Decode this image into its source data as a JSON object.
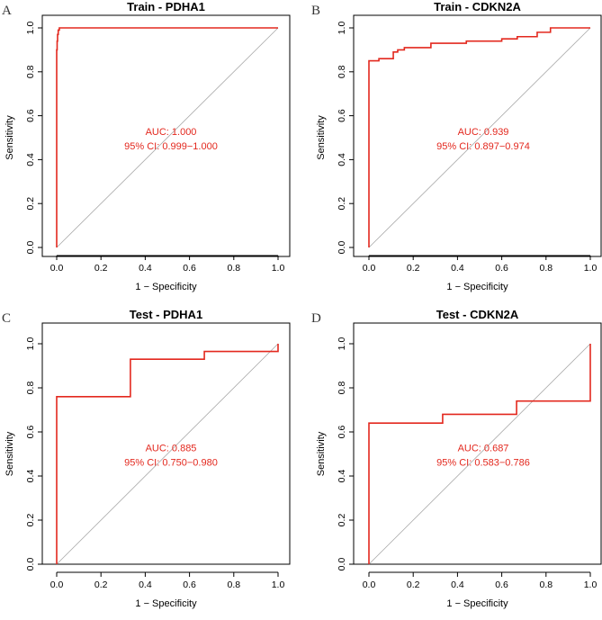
{
  "figure": {
    "panel_count": 4
  },
  "style": {
    "roc_color": "#e3281e",
    "diagonal_color": "#a8a8a8"
  },
  "chart_data": [
    {
      "type": "line",
      "panel_letter": "A",
      "title": "Train - PDHA1",
      "xlabel": "1 − Specificity",
      "ylabel": "Sensitivity",
      "xlim": [
        0,
        1
      ],
      "ylim": [
        0,
        1
      ],
      "xticks": [
        0,
        0.2,
        0.4,
        0.6,
        0.8,
        1
      ],
      "xtick_labels": [
        "0.0",
        "0.2",
        "0.4",
        "0.6",
        "0.8",
        "1.0"
      ],
      "yticks": [
        0,
        0.2,
        0.4,
        0.6,
        0.8,
        1
      ],
      "ytick_labels": [
        "0.0",
        "0.2",
        "0.4",
        "0.6",
        "0.8",
        "1.0"
      ],
      "diagonal": true,
      "auc_text": "AUC: 1.000",
      "ci_text": "95% CI: 0.999−1.000",
      "series": [
        {
          "name": "ROC",
          "x": [
            0,
            0,
            0.002,
            0.002,
            0.004,
            0.004,
            0.007,
            0.007,
            0.012,
            0.012,
            1
          ],
          "y": [
            0,
            0.9,
            0.9,
            0.94,
            0.94,
            0.97,
            0.97,
            0.99,
            0.99,
            1,
            1
          ]
        }
      ]
    },
    {
      "type": "line",
      "panel_letter": "B",
      "title": "Train - CDKN2A",
      "xlabel": "1 − Specificity",
      "ylabel": "Sensitivity",
      "xlim": [
        0,
        1
      ],
      "ylim": [
        0,
        1
      ],
      "xticks": [
        0,
        0.2,
        0.4,
        0.6,
        0.8,
        1
      ],
      "xtick_labels": [
        "0.0",
        "0.2",
        "0.4",
        "0.6",
        "0.8",
        "1.0"
      ],
      "yticks": [
        0,
        0.2,
        0.4,
        0.6,
        0.8,
        1
      ],
      "ytick_labels": [
        "0.0",
        "0.2",
        "0.4",
        "0.6",
        "0.8",
        "1.0"
      ],
      "diagonal": true,
      "auc_text": "AUC: 0.939",
      "ci_text": "95% CI: 0.897−0.974",
      "series": [
        {
          "name": "ROC",
          "x": [
            0,
            0,
            0.045,
            0.045,
            0.11,
            0.11,
            0.13,
            0.13,
            0.16,
            0.16,
            0.28,
            0.28,
            0.44,
            0.44,
            0.6,
            0.6,
            0.67,
            0.67,
            0.76,
            0.76,
            0.82,
            0.82,
            1
          ],
          "y": [
            0,
            0.85,
            0.85,
            0.86,
            0.86,
            0.89,
            0.89,
            0.9,
            0.9,
            0.91,
            0.91,
            0.93,
            0.93,
            0.94,
            0.94,
            0.95,
            0.95,
            0.96,
            0.96,
            0.98,
            0.98,
            1,
            1
          ]
        }
      ]
    },
    {
      "type": "line",
      "panel_letter": "C",
      "title": "Test - PDHA1",
      "xlabel": "1 − Specificity",
      "ylabel": "Sensitivity",
      "xlim": [
        0,
        1
      ],
      "ylim": [
        0,
        1
      ],
      "xticks": [
        0,
        0.2,
        0.4,
        0.6,
        0.8,
        1
      ],
      "xtick_labels": [
        "0.0",
        "0.2",
        "0.4",
        "0.6",
        "0.8",
        "1.0"
      ],
      "yticks": [
        0,
        0.2,
        0.4,
        0.6,
        0.8,
        1
      ],
      "ytick_labels": [
        "0.0",
        "0.2",
        "0.4",
        "0.6",
        "0.8",
        "1.0"
      ],
      "diagonal": true,
      "auc_text": "AUC: 0.885",
      "ci_text": "95% CI: 0.750−0.980",
      "series": [
        {
          "name": "ROC",
          "x": [
            0,
            0,
            0.333,
            0.333,
            0.667,
            0.667,
            1,
            1
          ],
          "y": [
            0,
            0.76,
            0.76,
            0.93,
            0.93,
            0.965,
            0.965,
            1
          ]
        }
      ]
    },
    {
      "type": "line",
      "panel_letter": "D",
      "title": "Test - CDKN2A",
      "xlabel": "1 − Specificity",
      "ylabel": "Sensitivity",
      "xlim": [
        0,
        1
      ],
      "ylim": [
        0,
        1
      ],
      "xticks": [
        0,
        0.2,
        0.4,
        0.6,
        0.8,
        1
      ],
      "xtick_labels": [
        "0.0",
        "0.2",
        "0.4",
        "0.6",
        "0.8",
        "1.0"
      ],
      "yticks": [
        0,
        0.2,
        0.4,
        0.6,
        0.8,
        1
      ],
      "ytick_labels": [
        "0.0",
        "0.2",
        "0.4",
        "0.6",
        "0.8",
        "1.0"
      ],
      "diagonal": true,
      "auc_text": "AUC: 0.687",
      "ci_text": "95% CI: 0.583−0.786",
      "series": [
        {
          "name": "ROC",
          "x": [
            0,
            0,
            0.333,
            0.333,
            0.667,
            0.667,
            1,
            1
          ],
          "y": [
            0,
            0.64,
            0.64,
            0.68,
            0.68,
            0.74,
            0.74,
            1
          ]
        }
      ]
    }
  ]
}
